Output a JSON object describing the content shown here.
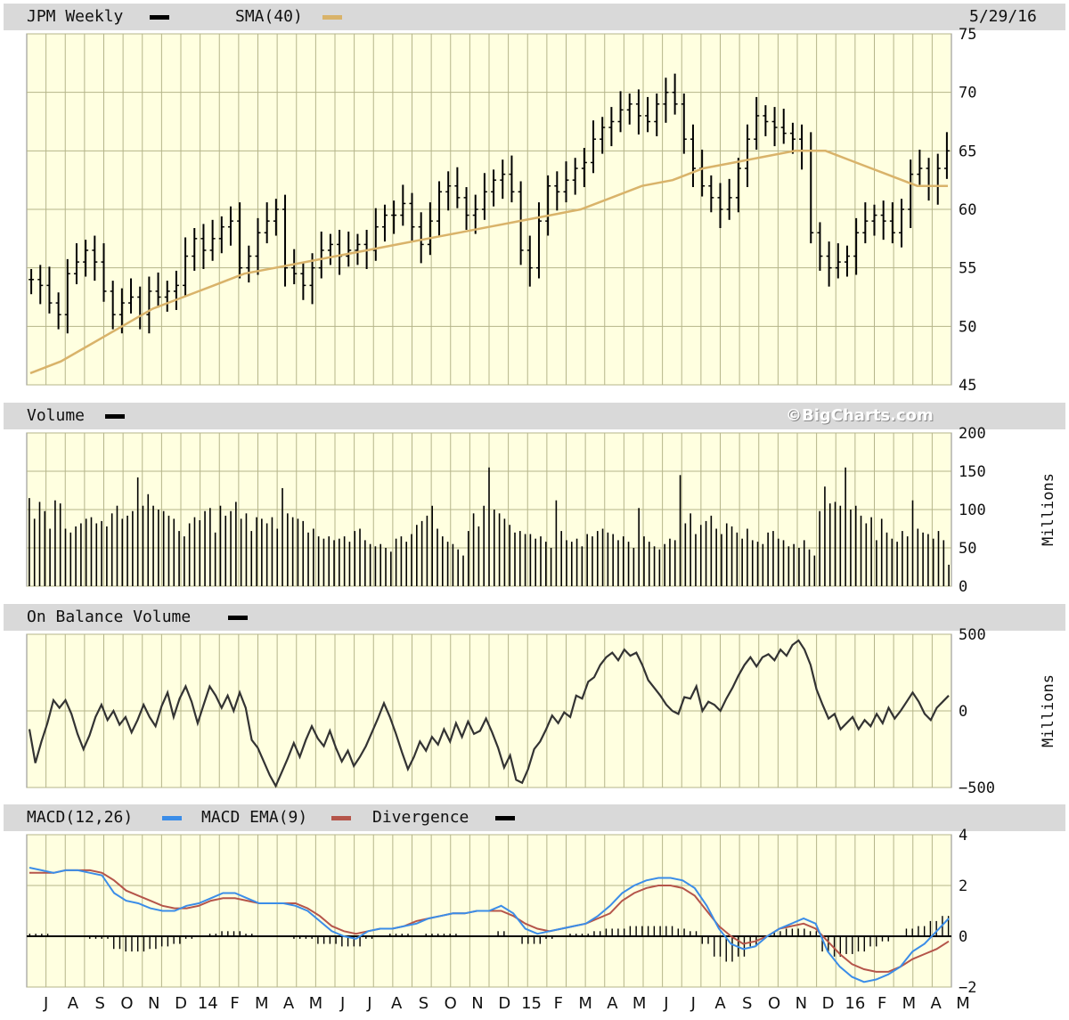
{
  "headers": {
    "price_title": "JPM Weekly",
    "sma_label": "SMA(40)",
    "date": "5/29/16",
    "volume_title": "Volume",
    "watermark": "©BigCharts.com",
    "obv_title": "On Balance Volume",
    "macd_label": "MACD(12,26)",
    "ema_label": "MACD EMA(9)",
    "div_label": "Divergence",
    "millions": "Millions"
  },
  "colors": {
    "bg": "#ffffe0",
    "grid": "#b5b58a",
    "bars": "#000000",
    "sma": "#d9b36a",
    "macd": "#3b8de8",
    "ema": "#b5554a",
    "header": "#d9d9d9"
  },
  "chart_data": [
    {
      "type": "bar",
      "panel": "price",
      "ylim": [
        45,
        75
      ],
      "yticks": [
        45,
        50,
        55,
        60,
        65,
        70,
        75
      ],
      "x_labels": [
        "J",
        "A",
        "S",
        "O",
        "N",
        "D",
        "14",
        "F",
        "M",
        "A",
        "M",
        "J",
        "J",
        "A",
        "S",
        "O",
        "N",
        "D",
        "15",
        "F",
        "M",
        "A",
        "M",
        "J",
        "J",
        "A",
        "S",
        "O",
        "N",
        "D",
        "16",
        "F",
        "M",
        "A",
        "M"
      ],
      "close_approx": [
        54,
        53.5,
        52,
        51,
        54.5,
        55.5,
        56.5,
        55.5,
        53,
        51,
        52,
        52.5,
        51,
        53,
        52.5,
        53,
        53.5,
        56,
        57.5,
        56.5,
        57.5,
        58.5,
        59,
        55,
        56,
        58,
        59,
        60,
        55,
        54.5,
        53.5,
        55,
        56.5,
        57,
        56,
        56.5,
        57,
        56.5,
        58.5,
        59.5,
        59.5,
        60.5,
        58.5,
        57,
        59,
        61.5,
        62,
        61,
        59.5,
        60,
        61.5,
        62.5,
        63,
        61.5,
        56.5,
        55,
        59,
        62,
        61.5,
        62.5,
        63.5,
        64,
        66,
        67,
        67.5,
        68.5,
        69,
        68,
        67.5,
        69,
        70,
        69,
        66,
        63.5,
        62,
        61,
        60,
        61,
        63.5,
        66,
        68,
        67.5,
        67,
        66.5,
        66,
        65,
        58,
        56,
        55,
        55.5,
        56,
        58,
        59,
        59.5,
        59,
        58,
        60,
        63,
        63.5,
        62,
        63.5,
        65
      ],
      "sma_approx": [
        46,
        47,
        48.5,
        50,
        51.5,
        52.5,
        53.5,
        54.5,
        55,
        55.5,
        56,
        56.5,
        57,
        57.5,
        58,
        58.5,
        59,
        59.5,
        60,
        61,
        62,
        62.5,
        63.5,
        64,
        64.5,
        65,
        65,
        64,
        63,
        62,
        62
      ]
    },
    {
      "type": "bar",
      "panel": "volume",
      "ylabel": "Millions",
      "ylim": [
        0,
        200
      ],
      "yticks": [
        0,
        50,
        100,
        150,
        200
      ],
      "values_approx": [
        115,
        88,
        110,
        98,
        75,
        112,
        108,
        75,
        70,
        78,
        82,
        88,
        90,
        82,
        85,
        78,
        95,
        105,
        88,
        92,
        98,
        142,
        105,
        120,
        105,
        100,
        98,
        92,
        88,
        72,
        65,
        82,
        90,
        86,
        98,
        102,
        70,
        105,
        92,
        98,
        110,
        88,
        95,
        72,
        90,
        88,
        82,
        90,
        75,
        128,
        95,
        90,
        88,
        85,
        70,
        75,
        65,
        62,
        65,
        60,
        62,
        65,
        58,
        72,
        75,
        60,
        55,
        52,
        55,
        50,
        45,
        62,
        65,
        58,
        68,
        80,
        85,
        92,
        105,
        75,
        65,
        58,
        55,
        48,
        40,
        72,
        95,
        78,
        105,
        155,
        100,
        95,
        88,
        80,
        70,
        72,
        68,
        68,
        62,
        65,
        58,
        50,
        112,
        72,
        60,
        58,
        62,
        52,
        68,
        65,
        72,
        75,
        70,
        68,
        60,
        65,
        58,
        50,
        102,
        65,
        58,
        52,
        48,
        55,
        62,
        60,
        145,
        82,
        95,
        68,
        80,
        85,
        92,
        75,
        68,
        82,
        78,
        70,
        62,
        75,
        60,
        58,
        55,
        70,
        72,
        62,
        60,
        52,
        55,
        50,
        60,
        48,
        40,
        98,
        130,
        108,
        110,
        105,
        155,
        100,
        105,
        92,
        82,
        90,
        60,
        88,
        70,
        62,
        58,
        72,
        65,
        112,
        75,
        70,
        68,
        62,
        72,
        60,
        28
      ]
    },
    {
      "type": "line",
      "panel": "on_balance_volume",
      "ylabel": "Millions",
      "ylim": [
        -500,
        500
      ],
      "yticks": [
        -500,
        0,
        500
      ],
      "values_approx": [
        -120,
        -340,
        -200,
        -80,
        70,
        20,
        70,
        -20,
        -150,
        -250,
        -160,
        -40,
        40,
        -60,
        0,
        -90,
        -40,
        -140,
        -60,
        40,
        -40,
        -100,
        30,
        120,
        -40,
        80,
        160,
        60,
        -80,
        40,
        160,
        100,
        20,
        100,
        0,
        120,
        20,
        -190,
        -240,
        -330,
        -420,
        -490,
        -400,
        -310,
        -210,
        -300,
        -190,
        -100,
        -180,
        -230,
        -130,
        -240,
        -330,
        -260,
        -360,
        -300,
        -230,
        -140,
        -50,
        50,
        -40,
        -150,
        -270,
        -380,
        -300,
        -200,
        -260,
        -170,
        -220,
        -120,
        -200,
        -80,
        -170,
        -70,
        -150,
        -130,
        -50,
        -140,
        -240,
        -370,
        -290,
        -450,
        -470,
        -380,
        -250,
        -200,
        -120,
        -30,
        -80,
        -10,
        -40,
        100,
        80,
        190,
        220,
        300,
        350,
        380,
        330,
        400,
        360,
        380,
        300,
        200,
        150,
        100,
        40,
        0,
        -20,
        90,
        80,
        160,
        0,
        60,
        40,
        0,
        80,
        150,
        230,
        300,
        350,
        290,
        350,
        370,
        330,
        400,
        360,
        430,
        460,
        400,
        300,
        140,
        40,
        -50,
        -20,
        -120,
        -80,
        -40,
        -120,
        -60,
        -100,
        -20,
        -80,
        20,
        -50,
        0,
        60,
        120,
        60,
        -20,
        -60,
        20,
        60,
        100
      ]
    },
    {
      "type": "line",
      "panel": "macd",
      "ylim": [
        -2,
        4
      ],
      "yticks": [
        -2,
        0,
        2,
        4
      ],
      "series": [
        {
          "name": "MACD(12,26)",
          "values_approx": [
            2.7,
            2.6,
            2.5,
            2.6,
            2.6,
            2.5,
            2.4,
            1.7,
            1.4,
            1.3,
            1.1,
            1.0,
            1.0,
            1.2,
            1.3,
            1.5,
            1.7,
            1.7,
            1.5,
            1.3,
            1.3,
            1.3,
            1.2,
            1.0,
            0.6,
            0.2,
            0.0,
            -0.1,
            0.2,
            0.3,
            0.3,
            0.4,
            0.5,
            0.7,
            0.8,
            0.9,
            0.9,
            1.0,
            1.0,
            1.2,
            0.9,
            0.3,
            0.1,
            0.2,
            0.3,
            0.4,
            0.5,
            0.8,
            1.2,
            1.7,
            2.0,
            2.2,
            2.3,
            2.3,
            2.2,
            1.9,
            1.2,
            0.3,
            -0.3,
            -0.5,
            -0.4,
            0.0,
            0.3,
            0.5,
            0.7,
            0.5,
            -0.6,
            -1.2,
            -1.6,
            -1.8,
            -1.7,
            -1.5,
            -1.2,
            -0.6,
            -0.3,
            0.2,
            0.7
          ]
        },
        {
          "name": "MACD EMA(9)",
          "values_approx": [
            2.5,
            2.5,
            2.5,
            2.6,
            2.6,
            2.6,
            2.5,
            2.2,
            1.8,
            1.6,
            1.4,
            1.2,
            1.1,
            1.1,
            1.2,
            1.4,
            1.5,
            1.5,
            1.4,
            1.3,
            1.3,
            1.3,
            1.3,
            1.1,
            0.8,
            0.4,
            0.2,
            0.1,
            0.2,
            0.3,
            0.3,
            0.4,
            0.6,
            0.7,
            0.8,
            0.9,
            0.9,
            1.0,
            1.0,
            1.0,
            0.8,
            0.5,
            0.3,
            0.2,
            0.3,
            0.4,
            0.5,
            0.7,
            0.9,
            1.4,
            1.7,
            1.9,
            2.0,
            2.0,
            1.9,
            1.6,
            1.0,
            0.4,
            0.0,
            -0.3,
            -0.2,
            0.0,
            0.3,
            0.4,
            0.5,
            0.3,
            -0.2,
            -0.7,
            -1.1,
            -1.3,
            -1.4,
            -1.4,
            -1.2,
            -0.9,
            -0.7,
            -0.5,
            -0.2
          ]
        },
        {
          "name": "Divergence",
          "values_approx": [
            0.1,
            0.1,
            0.0,
            0.0,
            0.0,
            -0.1,
            -0.1,
            -0.5,
            -0.6,
            -0.6,
            -0.5,
            -0.4,
            -0.3,
            -0.1,
            0.0,
            0.1,
            0.2,
            0.2,
            0.1,
            0.0,
            0.0,
            0.0,
            -0.1,
            -0.1,
            -0.3,
            -0.3,
            -0.4,
            -0.4,
            -0.1,
            0.0,
            0.1,
            0.1,
            0.0,
            0.1,
            0.1,
            0.1,
            0.0,
            0.0,
            0.0,
            0.2,
            0.0,
            -0.3,
            -0.3,
            -0.1,
            0.0,
            0.1,
            0.1,
            0.2,
            0.3,
            0.3,
            0.4,
            0.4,
            0.4,
            0.4,
            0.3,
            0.2,
            -0.3,
            -0.8,
            -1.0,
            -0.8,
            -0.4,
            0.0,
            0.2,
            0.3,
            0.3,
            0.2,
            -0.6,
            -0.8,
            -0.7,
            -0.6,
            -0.4,
            -0.2,
            0.0,
            0.3,
            0.4,
            0.6,
            0.8
          ]
        }
      ]
    }
  ]
}
